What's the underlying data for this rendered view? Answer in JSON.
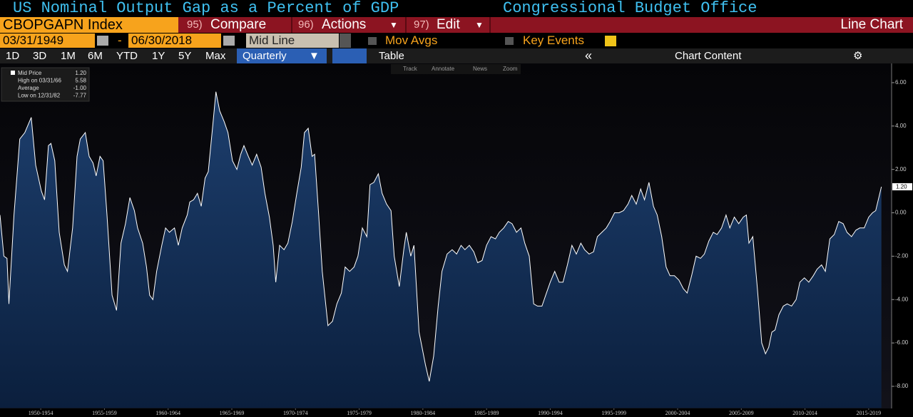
{
  "ui": {
    "title": "US Nominal Output Gap as a Percent of GDP",
    "source": "Congressional Budget Office",
    "ticker": "CBOPGAPN Index",
    "menu": [
      {
        "num": "95)",
        "label": "Compare"
      },
      {
        "num": "96)",
        "label": "Actions"
      },
      {
        "num": "97)",
        "label": "Edit"
      }
    ],
    "view": "Line Chart",
    "start_date": "03/31/1949",
    "date_sep": "-",
    "end_date": "06/30/2018",
    "mode": "Mid Line",
    "mov_avgs": "Mov Avgs",
    "key_events": "Key Events",
    "ranges": [
      "1D",
      "3D",
      "1M",
      "6M",
      "YTD",
      "1Y",
      "5Y",
      "Max"
    ],
    "frequency": "Quarterly",
    "table": "Table",
    "collapse": "«",
    "chart_content": "Chart Content",
    "tools": [
      "Track",
      "Annotate",
      "News",
      "Zoom"
    ]
  },
  "chart_data": {
    "type": "area",
    "stats": [
      {
        "name": "Mid Price",
        "value": "1.20"
      },
      {
        "name": "High on 03/31/66",
        "value": "5.58"
      },
      {
        "name": "Average",
        "value": "-1.00"
      },
      {
        "name": "Low on 12/31/82",
        "value": "-7.77"
      }
    ],
    "x": [
      1949.3,
      1949.6,
      1949.85,
      1950.0,
      1950.4,
      1950.85,
      1951.25,
      1951.75,
      1952.1,
      1952.55,
      1952.8,
      1953.1,
      1953.3,
      1953.6,
      1953.95,
      1954.35,
      1954.6,
      1955.0,
      1955.35,
      1955.6,
      1956.0,
      1956.3,
      1956.6,
      1956.85,
      1957.15,
      1957.4,
      1957.7,
      1958.1,
      1958.45,
      1958.8,
      1959.15,
      1959.5,
      1959.85,
      1960.1,
      1960.5,
      1960.8,
      1961.05,
      1961.3,
      1961.6,
      1962.0,
      1962.3,
      1962.6,
      1963.0,
      1963.3,
      1963.6,
      1964.0,
      1964.2,
      1964.5,
      1964.8,
      1965.1,
      1965.4,
      1965.65,
      1966.0,
      1966.25,
      1966.55,
      1966.9,
      1967.2,
      1967.55,
      1967.9,
      1968.2,
      1968.45,
      1968.8,
      1969.1,
      1969.45,
      1969.8,
      1970.1,
      1970.45,
      1970.75,
      1970.95,
      1971.25,
      1971.6,
      1971.9,
      1972.25,
      1972.6,
      1972.95,
      1973.2,
      1973.5,
      1973.8,
      1974.0,
      1974.3,
      1974.6,
      1975.05,
      1975.4,
      1975.75,
      1976.1,
      1976.4,
      1976.75,
      1977.1,
      1977.4,
      1977.75,
      1978.1,
      1978.35,
      1978.65,
      1979.0,
      1979.3,
      1979.65,
      1980.0,
      1980.25,
      1980.65,
      1981.0,
      1981.2,
      1981.55,
      1981.8,
      1982.2,
      1982.7,
      1983.0,
      1983.35,
      1983.7,
      1984.0,
      1984.4,
      1984.8,
      1985.15,
      1985.5,
      1985.8,
      1986.15,
      1986.5,
      1986.8,
      1987.15,
      1987.5,
      1987.85,
      1988.2,
      1988.5,
      1988.85,
      1989.2,
      1989.5,
      1989.85,
      1990.2,
      1990.5,
      1990.85,
      1991.2,
      1991.5,
      1991.85,
      1992.2,
      1992.5,
      1992.85,
      1993.2,
      1993.5,
      1993.85,
      1994.2,
      1994.55,
      1994.9,
      1995.2,
      1995.55,
      1995.9,
      1996.2,
      1996.55,
      1996.9,
      1997.2,
      1997.55,
      1997.9,
      1998.25,
      1998.6,
      1998.9,
      1999.25,
      1999.6,
      1999.9,
      2000.25,
      2000.6,
      2000.9,
      2001.25,
      2001.6,
      2001.9,
      2002.25,
      2002.6,
      2002.95,
      2003.25,
      2003.6,
      2003.95,
      2004.3,
      2004.6,
      2004.95,
      2005.3,
      2005.6,
      2005.95,
      2006.3,
      2006.6,
      2006.95,
      2007.3,
      2007.65,
      2007.9,
      2008.1,
      2008.4,
      2008.75,
      2009.1,
      2009.4,
      2009.65,
      2009.9,
      2010.15,
      2010.45,
      2010.8,
      2011.1,
      2011.45,
      2011.8,
      2012.1,
      2012.45,
      2012.8,
      2013.15,
      2013.45,
      2013.8,
      2014.1,
      2014.45,
      2014.8,
      2015.15,
      2015.5,
      2015.8,
      2016.15,
      2016.5,
      2016.8,
      2017.15,
      2017.5,
      2017.8,
      2018.05,
      2018.5
    ],
    "series": [
      {
        "name": "Mid Price",
        "color": "#ffffff",
        "fill": "#16335c",
        "values": [
          -0.1,
          -2.0,
          -2.1,
          -4.2,
          -0.1,
          3.4,
          3.7,
          4.4,
          2.2,
          1.0,
          0.6,
          3.1,
          3.2,
          2.4,
          -0.9,
          -2.4,
          -2.7,
          -0.7,
          2.6,
          3.4,
          3.7,
          2.6,
          2.3,
          1.7,
          2.6,
          2.4,
          -0.1,
          -3.8,
          -4.5,
          -1.4,
          -0.5,
          0.7,
          0.1,
          -0.7,
          -1.4,
          -2.5,
          -3.8,
          -4.0,
          -2.7,
          -1.5,
          -0.7,
          -0.9,
          -0.7,
          -1.5,
          -0.7,
          -0.1,
          0.5,
          0.6,
          0.9,
          0.3,
          1.6,
          1.9,
          4.0,
          5.58,
          4.7,
          4.2,
          3.7,
          2.4,
          2.0,
          2.7,
          3.1,
          2.6,
          2.2,
          2.7,
          2.1,
          0.9,
          -0.2,
          -1.5,
          -3.2,
          -1.5,
          -1.7,
          -1.4,
          -0.4,
          0.9,
          2.1,
          3.7,
          3.9,
          2.6,
          2.7,
          0.1,
          -2.7,
          -5.2,
          -5.0,
          -4.2,
          -3.7,
          -2.5,
          -2.7,
          -2.5,
          -2.0,
          -0.7,
          -1.1,
          1.3,
          1.4,
          1.8,
          0.9,
          0.4,
          0.1,
          -2.0,
          -3.4,
          -1.7,
          -0.9,
          -2.0,
          -1.5,
          -5.5,
          -7.0,
          -7.77,
          -6.6,
          -4.3,
          -2.7,
          -1.9,
          -1.7,
          -1.9,
          -1.5,
          -1.7,
          -1.5,
          -1.8,
          -2.3,
          -2.2,
          -1.5,
          -1.1,
          -1.2,
          -0.9,
          -0.7,
          -0.4,
          -0.5,
          -0.9,
          -0.7,
          -1.4,
          -2.0,
          -4.2,
          -4.3,
          -4.3,
          -3.7,
          -3.2,
          -2.7,
          -3.2,
          -3.2,
          -2.4,
          -1.5,
          -1.9,
          -1.4,
          -1.7,
          -1.9,
          -1.8,
          -1.1,
          -0.9,
          -0.7,
          -0.4,
          0.0,
          0.0,
          0.1,
          0.4,
          0.8,
          0.4,
          1.1,
          0.6,
          1.4,
          0.3,
          -0.1,
          -1.1,
          -2.5,
          -2.9,
          -2.9,
          -3.1,
          -3.5,
          -3.7,
          -2.9,
          -2.0,
          -2.1,
          -1.9,
          -1.3,
          -0.9,
          -1.0,
          -0.7,
          -0.1,
          -0.7,
          -0.2,
          -0.5,
          -0.2,
          -0.1,
          -1.4,
          -1.1,
          -3.4,
          -6.0,
          -6.5,
          -6.2,
          -5.5,
          -5.4,
          -4.7,
          -4.3,
          -4.2,
          -4.3,
          -4.0,
          -3.2,
          -3.0,
          -3.2,
          -2.9,
          -2.6,
          -2.4,
          -2.7,
          -1.2,
          -1.0,
          -0.4,
          -0.5,
          -0.9,
          -1.1,
          -0.8,
          -0.7,
          -0.7,
          -0.2,
          0.0,
          0.1,
          1.2
        ]
      }
    ],
    "xlim": [
      1949.3,
      2019.3
    ],
    "xticks": [
      {
        "value": 1952.5,
        "label": "1950-1954"
      },
      {
        "value": 1957.5,
        "label": "1955-1959"
      },
      {
        "value": 1962.5,
        "label": "1960-1964"
      },
      {
        "value": 1967.5,
        "label": "1965-1969"
      },
      {
        "value": 1972.5,
        "label": "1970-1974"
      },
      {
        "value": 1977.5,
        "label": "1975-1979"
      },
      {
        "value": 1982.5,
        "label": "1980-1984"
      },
      {
        "value": 1987.5,
        "label": "1985-1989"
      },
      {
        "value": 1992.5,
        "label": "1990-1994"
      },
      {
        "value": 1997.5,
        "label": "1995-1999"
      },
      {
        "value": 2002.5,
        "label": "2000-2004"
      },
      {
        "value": 2007.5,
        "label": "2005-2009"
      },
      {
        "value": 2012.5,
        "label": "2010-2014"
      },
      {
        "value": 2017.5,
        "label": "2015-2019"
      }
    ],
    "ylim": [
      -9,
      6.85
    ],
    "yticks": [
      {
        "value": 6,
        "label": "6.00"
      },
      {
        "value": 4,
        "label": "4.00"
      },
      {
        "value": 2,
        "label": "2.00"
      },
      {
        "value": 0,
        "label": "0.00"
      },
      {
        "value": -2,
        "label": "-2.00"
      },
      {
        "value": -4,
        "label": "-4.00"
      },
      {
        "value": -6,
        "label": "-6.00"
      },
      {
        "value": -8,
        "label": "-8.00"
      }
    ],
    "grid": false
  }
}
